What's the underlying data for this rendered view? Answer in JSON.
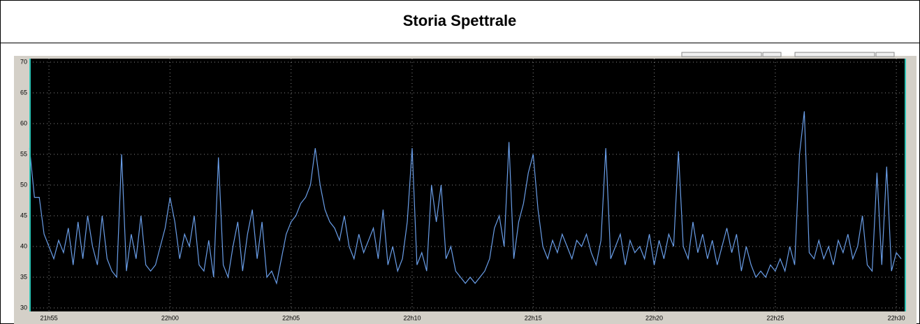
{
  "chart_data": {
    "type": "line",
    "title": "Storia Spettrale",
    "x": [
      1314.2,
      1314.4,
      1314.6,
      1314.8,
      1315,
      1315.2,
      1315.4,
      1315.6,
      1315.8,
      1316,
      1316.2,
      1316.4,
      1316.6,
      1316.8,
      1317,
      1317.2,
      1317.4,
      1317.6,
      1317.8,
      1318,
      1318.2,
      1318.4,
      1318.6,
      1318.8,
      1319,
      1319.2,
      1319.4,
      1319.6,
      1319.8,
      1320,
      1320.2,
      1320.4,
      1320.6,
      1320.8,
      1321,
      1321.2,
      1321.4,
      1321.6,
      1321.8,
      1322,
      1322.2,
      1322.4,
      1322.6,
      1322.8,
      1323,
      1323.2,
      1323.4,
      1323.6,
      1323.8,
      1324,
      1324.2,
      1324.4,
      1324.6,
      1324.8,
      1325,
      1325.2,
      1325.4,
      1325.6,
      1325.8,
      1326,
      1326.2,
      1326.4,
      1326.6,
      1326.8,
      1327,
      1327.2,
      1327.4,
      1327.6,
      1327.8,
      1328,
      1328.2,
      1328.4,
      1328.6,
      1328.8,
      1329,
      1329.2,
      1329.4,
      1329.6,
      1329.8,
      1330,
      1330.2,
      1330.4,
      1330.6,
      1330.8,
      1331,
      1331.2,
      1331.4,
      1331.6,
      1331.8,
      1332,
      1332.2,
      1332.4,
      1332.6,
      1332.8,
      1333,
      1333.2,
      1333.4,
      1333.6,
      1333.8,
      1334,
      1334.2,
      1334.4,
      1334.6,
      1334.8,
      1335,
      1335.2,
      1335.4,
      1335.6,
      1335.8,
      1336,
      1336.2,
      1336.4,
      1336.6,
      1336.8,
      1337,
      1337.2,
      1337.4,
      1337.6,
      1337.8,
      1338,
      1338.2,
      1338.4,
      1338.6,
      1338.8,
      1339,
      1339.2,
      1339.4,
      1339.6,
      1339.8,
      1340,
      1340.2,
      1340.4,
      1340.6,
      1340.8,
      1341,
      1341.2,
      1341.4,
      1341.6,
      1341.8,
      1342,
      1342.2,
      1342.4,
      1342.6,
      1342.8,
      1343,
      1343.2,
      1343.4,
      1343.6,
      1343.8,
      1344,
      1344.2,
      1344.4,
      1344.6,
      1344.8,
      1345,
      1345.2,
      1345.4,
      1345.6,
      1345.8,
      1346,
      1346.2,
      1346.4,
      1346.6,
      1346.8,
      1347,
      1347.2,
      1347.4,
      1347.6,
      1347.8,
      1348,
      1348.2,
      1348.4,
      1348.6,
      1348.8,
      1349,
      1349.2,
      1349.4,
      1349.6,
      1349.8,
      1350,
      1350.2
    ],
    "series": [
      {
        "color": "#6a9ee8",
        "values": [
          56,
          48,
          48,
          42,
          40,
          38,
          41,
          39,
          43,
          37,
          44,
          38,
          45,
          40,
          37,
          45,
          38,
          36,
          35,
          55,
          36,
          42,
          38,
          45,
          37,
          36,
          37,
          40,
          43,
          48,
          44,
          38,
          42,
          40,
          45,
          37,
          36,
          41,
          35,
          54.5,
          37,
          35,
          40,
          44,
          36,
          42,
          46,
          38,
          44,
          35,
          36,
          34,
          38,
          42,
          44,
          45,
          47,
          48,
          50,
          56,
          50,
          46,
          44,
          43,
          41,
          45,
          40,
          38,
          42,
          39,
          41,
          43,
          38,
          46,
          37,
          40,
          36,
          38,
          44,
          56,
          37,
          39,
          36,
          50,
          44,
          50,
          38,
          40,
          36,
          35,
          34,
          35,
          34,
          35,
          36,
          38,
          43,
          45,
          40,
          57,
          38,
          44,
          47,
          52,
          55,
          46,
          40,
          38,
          41,
          39,
          42,
          40,
          38,
          41,
          40,
          42,
          39,
          37,
          41,
          56,
          38,
          40,
          42,
          37,
          41,
          39,
          40,
          38,
          42,
          37,
          41,
          38,
          42,
          40,
          55.5,
          40,
          38,
          44,
          39,
          42,
          38,
          41,
          37,
          40,
          43,
          39,
          42,
          36,
          40,
          37,
          35,
          36,
          35,
          37,
          36,
          38,
          36,
          40,
          37,
          55,
          62,
          39,
          38,
          41,
          38,
          40,
          37,
          41,
          39,
          42,
          38,
          40,
          45,
          37,
          36,
          52,
          37,
          53,
          36,
          39,
          38
        ]
      }
    ],
    "xlim": [
      1314.19,
      1350.4
    ],
    "xticks": [
      {
        "value": 1315,
        "label": "21h55"
      },
      {
        "value": 1320,
        "label": "22h00"
      },
      {
        "value": 1325,
        "label": "22h05"
      },
      {
        "value": 1330,
        "label": "22h10"
      },
      {
        "value": 1335,
        "label": "22h15"
      },
      {
        "value": 1340,
        "label": "22h20"
      },
      {
        "value": 1345,
        "label": "22h25"
      },
      {
        "value": 1350,
        "label": "22h30"
      }
    ],
    "ylim": [
      30,
      70
    ],
    "yticks": [
      30,
      35,
      40,
      45,
      50,
      55,
      60,
      65,
      70
    ],
    "grid": true
  }
}
